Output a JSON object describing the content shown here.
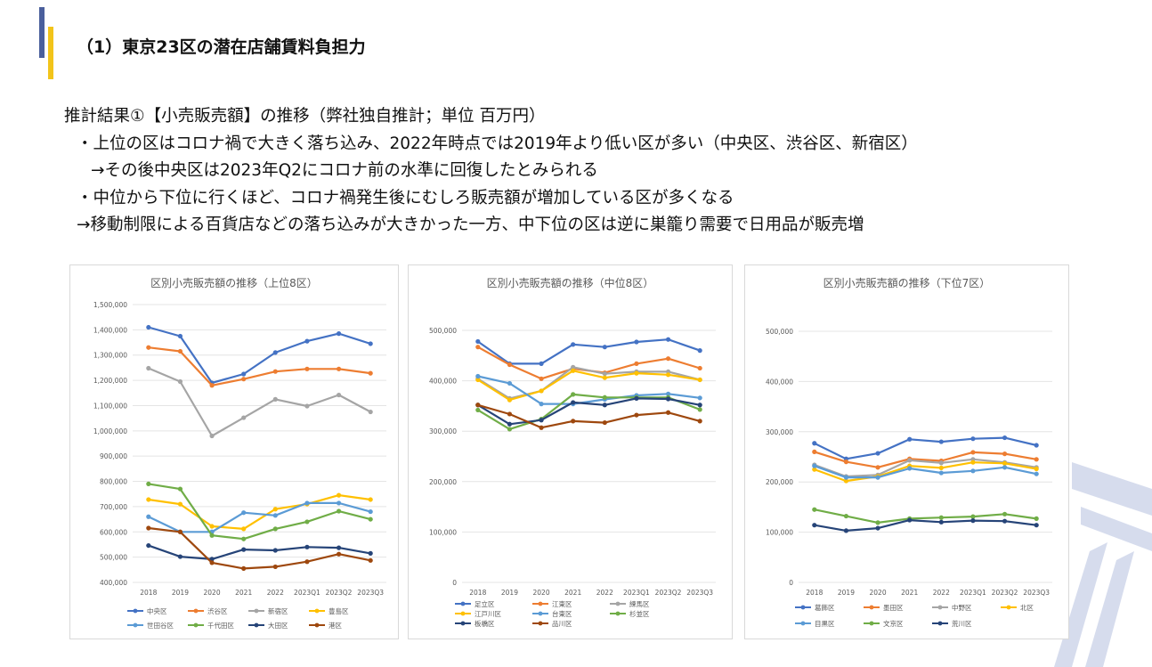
{
  "slide": {
    "title": "（1）東京23区の潜在店舗賃料負担力",
    "heading": "推計結果①【小売販売額】の推移（弊社独自推計；単位 百万円）",
    "bullets": [
      "・上位の区はコロナ禍で大きく落ち込み、2022年時点では2019年より低い区が多い（中央区、渋谷区、新宿区）",
      "→その後中央区は2023年Q2にコロナ前の水準に回復したとみられる",
      "・中位から下位に行くほど、コロナ禍発生後にむしろ販売額が増加している区が多くなる",
      "→移動制限による百貨店などの落ち込みが大きかった一方、中下位の区は逆に巣籠り需要で日用品が販売増"
    ]
  },
  "chart_data": [
    {
      "type": "line",
      "title": "区別小売販売額の推移（上位8区）",
      "categories": [
        "2018",
        "2019",
        "2020",
        "2021",
        "2022",
        "2023Q1",
        "2023Q2",
        "2023Q3"
      ],
      "ylim": [
        400000,
        1500000
      ],
      "yticks": [
        400000,
        500000,
        600000,
        700000,
        800000,
        900000,
        1000000,
        1100000,
        1200000,
        1300000,
        1400000,
        1500000
      ],
      "ytick_labels": [
        "400,000",
        "500,000",
        "600,000",
        "700,000",
        "800,000",
        "900,000",
        "1,000,000",
        "1,100,000",
        "1,200,000",
        "1,300,000",
        "1,400,000",
        "1,500,000"
      ],
      "legend_position": "bottom",
      "series": [
        {
          "name": "中央区",
          "color": "#4472c4",
          "values": [
            1410000,
            1375000,
            1190000,
            1225000,
            1310000,
            1355000,
            1385000,
            1345000
          ]
        },
        {
          "name": "渋谷区",
          "color": "#ed7d31",
          "values": [
            1330000,
            1315000,
            1180000,
            1205000,
            1235000,
            1245000,
            1245000,
            1228000
          ]
        },
        {
          "name": "新宿区",
          "color": "#a5a5a5",
          "values": [
            1248000,
            1195000,
            980000,
            1052000,
            1125000,
            1098000,
            1142000,
            1075000
          ]
        },
        {
          "name": "豊島区",
          "color": "#ffc000",
          "values": [
            728000,
            710000,
            622000,
            612000,
            690000,
            710000,
            745000,
            728000
          ]
        },
        {
          "name": "世田谷区",
          "color": "#5b9bd5",
          "values": [
            660000,
            600000,
            600000,
            676000,
            665000,
            714000,
            714000,
            680000
          ]
        },
        {
          "name": "千代田区",
          "color": "#70ad47",
          "values": [
            790000,
            770000,
            586000,
            572000,
            612000,
            640000,
            682000,
            650000
          ]
        },
        {
          "name": "大田区",
          "color": "#264478",
          "values": [
            546000,
            502000,
            492000,
            530000,
            527000,
            540000,
            537000,
            515000
          ]
        },
        {
          "name": "港区",
          "color": "#9e480e",
          "values": [
            615000,
            600000,
            478000,
            455000,
            462000,
            482000,
            512000,
            487000
          ]
        }
      ]
    },
    {
      "type": "line",
      "title": "区別小売販売額の推移（中位8区）",
      "categories": [
        "2018",
        "2019",
        "2020",
        "2021",
        "2022",
        "2023Q1",
        "2023Q2",
        "2023Q3"
      ],
      "ylim": [
        0,
        500000
      ],
      "yticks": [
        0,
        100000,
        200000,
        300000,
        400000,
        500000
      ],
      "ytick_labels": [
        "0",
        "100,000",
        "200,000",
        "300,000",
        "400,000",
        "500,000"
      ],
      "legend_position": "bottom",
      "series": [
        {
          "name": "足立区",
          "color": "#4472c4",
          "values": [
            478000,
            434000,
            434000,
            472000,
            467000,
            477000,
            482000,
            460000
          ]
        },
        {
          "name": "江東区",
          "color": "#ed7d31",
          "values": [
            467000,
            432000,
            404000,
            424000,
            416000,
            434000,
            444000,
            425000
          ]
        },
        {
          "name": "練馬区",
          "color": "#a5a5a5",
          "values": [
            404000,
            365000,
            380000,
            427000,
            414000,
            418000,
            418000,
            402000
          ]
        },
        {
          "name": "江戸川区",
          "color": "#ffc000",
          "values": [
            402000,
            362000,
            380000,
            420000,
            406000,
            415000,
            412000,
            402000
          ]
        },
        {
          "name": "台東区",
          "color": "#5b9bd5",
          "values": [
            409000,
            395000,
            354000,
            354000,
            363000,
            371000,
            374000,
            366000
          ]
        },
        {
          "name": "杉並区",
          "color": "#70ad47",
          "values": [
            342000,
            304000,
            324000,
            373000,
            367000,
            367000,
            367000,
            343000
          ]
        },
        {
          "name": "板橋区",
          "color": "#264478",
          "values": [
            352000,
            314000,
            322000,
            357000,
            352000,
            365000,
            364000,
            352000
          ]
        },
        {
          "name": "品川区",
          "color": "#9e480e",
          "values": [
            352000,
            334000,
            307000,
            320000,
            317000,
            332000,
            337000,
            320000
          ]
        }
      ]
    },
    {
      "type": "line",
      "title": "区別小売販売額の推移（下位7区）",
      "categories": [
        "2018",
        "2019",
        "2020",
        "2021",
        "2022",
        "2023Q1",
        "2023Q2",
        "2023Q3"
      ],
      "ylim": [
        0,
        500000
      ],
      "yticks": [
        0,
        100000,
        200000,
        300000,
        400000,
        500000
      ],
      "ytick_labels": [
        "0",
        "100,000",
        "200,000",
        "300,000",
        "400,000",
        "500,000"
      ],
      "legend_position": "bottom",
      "series": [
        {
          "name": "葛飾区",
          "color": "#4472c4",
          "values": [
            277000,
            246000,
            257000,
            285000,
            280000,
            286000,
            288000,
            273000
          ]
        },
        {
          "name": "墨田区",
          "color": "#ed7d31",
          "values": [
            260000,
            240000,
            229000,
            246000,
            242000,
            259000,
            256000,
            245000
          ]
        },
        {
          "name": "中野区",
          "color": "#a5a5a5",
          "values": [
            234000,
            211000,
            214000,
            243000,
            238000,
            245000,
            239000,
            229000
          ]
        },
        {
          "name": "北区",
          "color": "#ffc000",
          "values": [
            225000,
            202000,
            211000,
            232000,
            228000,
            239000,
            237000,
            226000
          ]
        },
        {
          "name": "目黒区",
          "color": "#5b9bd5",
          "values": [
            232000,
            209000,
            209000,
            227000,
            218000,
            222000,
            229000,
            216000
          ]
        },
        {
          "name": "文京区",
          "color": "#70ad47",
          "values": [
            145000,
            132000,
            119000,
            127000,
            129000,
            131000,
            136000,
            127000
          ]
        },
        {
          "name": "荒川区",
          "color": "#264478",
          "values": [
            114000,
            103000,
            108000,
            124000,
            120000,
            123000,
            122000,
            114000
          ]
        }
      ]
    }
  ]
}
